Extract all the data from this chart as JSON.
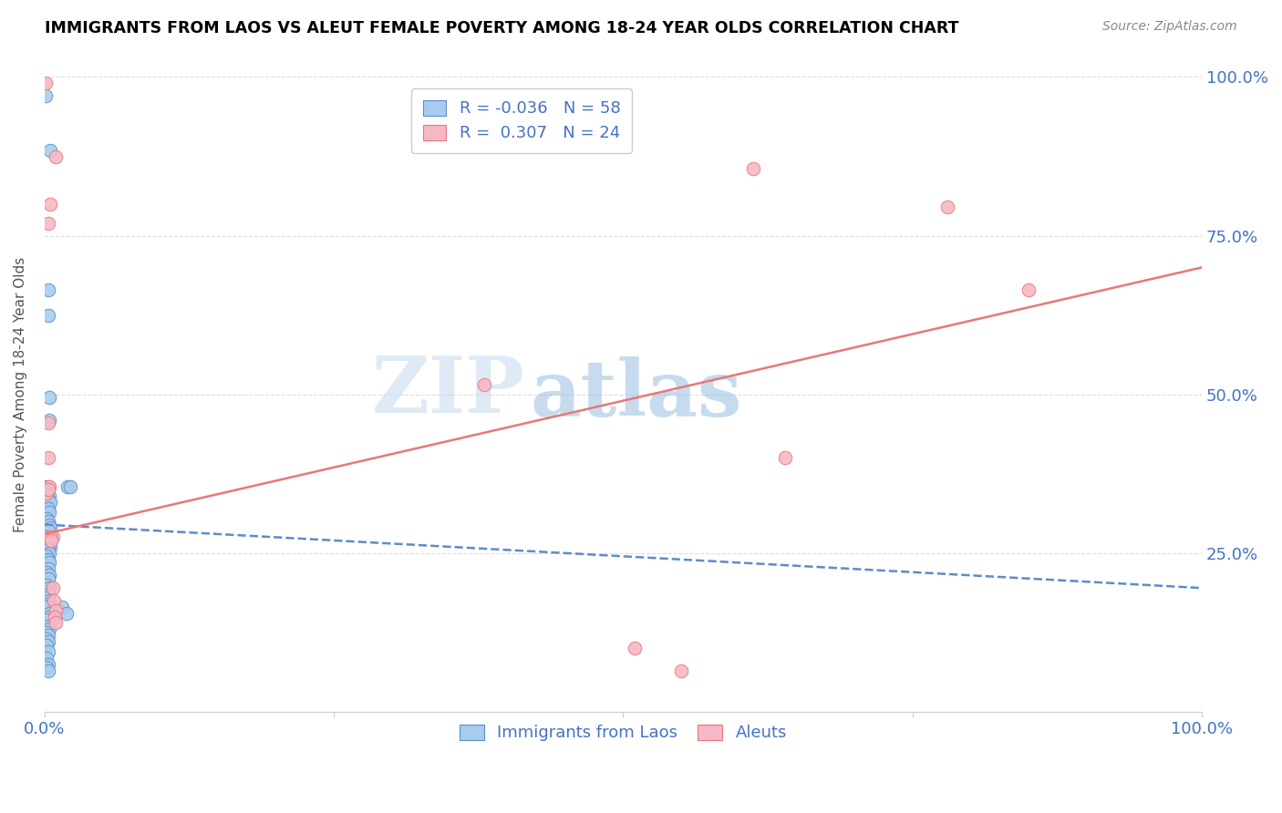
{
  "title": "IMMIGRANTS FROM LAOS VS ALEUT FEMALE POVERTY AMONG 18-24 YEAR OLDS CORRELATION CHART",
  "source": "Source: ZipAtlas.com",
  "ylabel": "Female Poverty Among 18-24 Year Olds",
  "xlim": [
    0,
    1.0
  ],
  "ylim": [
    0,
    1.0
  ],
  "watermark_top": "ZIP",
  "watermark_bot": "atlas",
  "blue_scatter": [
    [
      0.001,
      0.97
    ],
    [
      0.005,
      0.885
    ],
    [
      0.003,
      0.665
    ],
    [
      0.003,
      0.625
    ],
    [
      0.004,
      0.495
    ],
    [
      0.004,
      0.46
    ],
    [
      0.001,
      0.355
    ],
    [
      0.003,
      0.355
    ],
    [
      0.002,
      0.345
    ],
    [
      0.004,
      0.34
    ],
    [
      0.003,
      0.335
    ],
    [
      0.005,
      0.33
    ],
    [
      0.003,
      0.32
    ],
    [
      0.004,
      0.315
    ],
    [
      0.002,
      0.305
    ],
    [
      0.003,
      0.3
    ],
    [
      0.004,
      0.295
    ],
    [
      0.005,
      0.29
    ],
    [
      0.003,
      0.285
    ],
    [
      0.002,
      0.275
    ],
    [
      0.003,
      0.27
    ],
    [
      0.004,
      0.265
    ],
    [
      0.005,
      0.26
    ],
    [
      0.003,
      0.255
    ],
    [
      0.004,
      0.25
    ],
    [
      0.002,
      0.245
    ],
    [
      0.003,
      0.24
    ],
    [
      0.004,
      0.235
    ],
    [
      0.003,
      0.225
    ],
    [
      0.002,
      0.22
    ],
    [
      0.004,
      0.215
    ],
    [
      0.003,
      0.21
    ],
    [
      0.002,
      0.2
    ],
    [
      0.004,
      0.195
    ],
    [
      0.003,
      0.185
    ],
    [
      0.002,
      0.18
    ],
    [
      0.004,
      0.175
    ],
    [
      0.003,
      0.17
    ],
    [
      0.002,
      0.165
    ],
    [
      0.004,
      0.155
    ],
    [
      0.003,
      0.15
    ],
    [
      0.002,
      0.145
    ],
    [
      0.003,
      0.135
    ],
    [
      0.004,
      0.13
    ],
    [
      0.002,
      0.125
    ],
    [
      0.003,
      0.12
    ],
    [
      0.002,
      0.115
    ],
    [
      0.003,
      0.11
    ],
    [
      0.002,
      0.105
    ],
    [
      0.003,
      0.095
    ],
    [
      0.002,
      0.085
    ],
    [
      0.003,
      0.075
    ],
    [
      0.002,
      0.07
    ],
    [
      0.003,
      0.065
    ],
    [
      0.015,
      0.165
    ],
    [
      0.019,
      0.155
    ],
    [
      0.02,
      0.355
    ],
    [
      0.022,
      0.355
    ]
  ],
  "pink_scatter": [
    [
      0.001,
      0.99
    ],
    [
      0.01,
      0.875
    ],
    [
      0.005,
      0.8
    ],
    [
      0.003,
      0.77
    ],
    [
      0.612,
      0.855
    ],
    [
      0.78,
      0.795
    ],
    [
      0.85,
      0.665
    ],
    [
      0.003,
      0.455
    ],
    [
      0.003,
      0.4
    ],
    [
      0.004,
      0.355
    ],
    [
      0.002,
      0.345
    ],
    [
      0.007,
      0.275
    ],
    [
      0.005,
      0.275
    ],
    [
      0.007,
      0.195
    ],
    [
      0.008,
      0.175
    ],
    [
      0.01,
      0.16
    ],
    [
      0.009,
      0.15
    ],
    [
      0.01,
      0.14
    ],
    [
      0.38,
      0.515
    ],
    [
      0.51,
      0.1
    ],
    [
      0.55,
      0.065
    ],
    [
      0.64,
      0.4
    ],
    [
      0.006,
      0.27
    ],
    [
      0.003,
      0.35
    ]
  ],
  "blue_R": "-0.036",
  "blue_N": "58",
  "pink_R": "0.307",
  "pink_N": "24",
  "blue_color": "#A8CCEE",
  "pink_color": "#F5B8C4",
  "blue_line_color": "#5B8DC8",
  "pink_line_color": "#E87878",
  "legend_label_blue": "Immigrants from Laos",
  "legend_label_pink": "Aleuts"
}
